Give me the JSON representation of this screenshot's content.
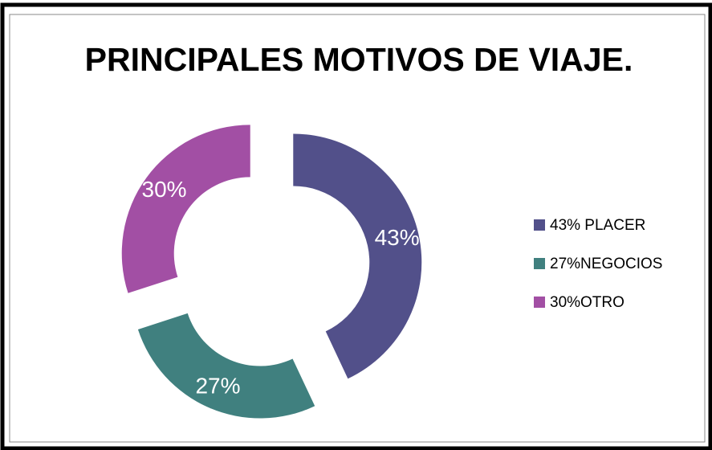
{
  "chart_data": {
    "type": "donut",
    "title": "PRINCIPALES MOTIVOS DE VIAJE.",
    "categories": [
      "43% PLACER",
      "27%NEGOCIOS",
      "30%OTRO"
    ],
    "values": [
      43,
      27,
      30
    ],
    "value_labels": [
      "43%",
      "27%",
      "30%"
    ],
    "colors": [
      "#52508a",
      "#40807f",
      "#a24fa4"
    ],
    "legend": "right"
  }
}
